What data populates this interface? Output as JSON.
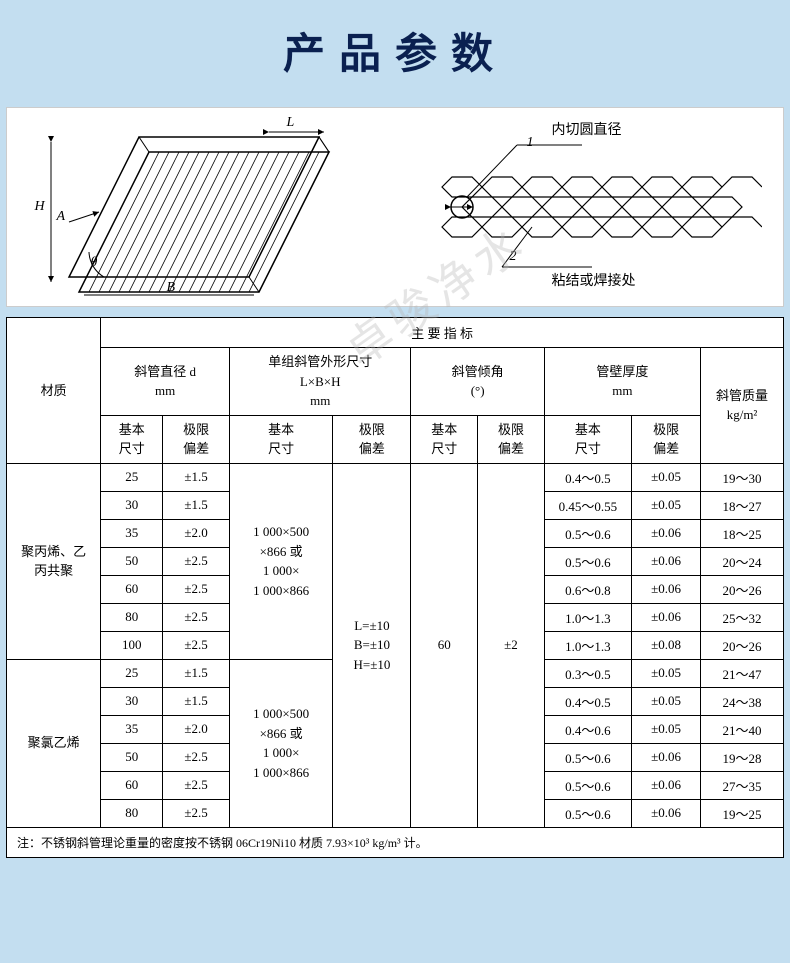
{
  "page": {
    "title": "产品参数",
    "watermark": "卓骏净水",
    "title_color": "#0a2050",
    "bg_color": "#c3def0",
    "panel_bg": "#ffffff",
    "border_color": "#000000"
  },
  "diagram": {
    "left_labels": {
      "H": "H",
      "L": "L",
      "A": "A",
      "B": "B",
      "theta": "θ"
    },
    "right_labels": {
      "top_arrow": "内切圆直径",
      "top_num": "1",
      "bottom_num": "2",
      "bottom_arrow": "粘结或焊接处"
    }
  },
  "table": {
    "top_header": "主 要 指 标",
    "col_groups": [
      {
        "label_1": "材质",
        "label_2": ""
      },
      {
        "label_1": "斜管直径 d",
        "label_2": "mm",
        "sub": [
          "基本\n尺寸",
          "极限\n偏差"
        ]
      },
      {
        "label_1": "单组斜管外形尺寸",
        "label_2": "L×B×H",
        "label_3": "mm",
        "sub": [
          "基本\n尺寸",
          "极限\n偏差"
        ]
      },
      {
        "label_1": "斜管倾角",
        "label_2": "(°)",
        "sub": [
          "基本\n尺寸",
          "极限\n偏差"
        ]
      },
      {
        "label_1": "管壁厚度",
        "label_2": "mm",
        "sub": [
          "基本\n尺寸",
          "极限\n偏差"
        ]
      },
      {
        "label_1": "斜管质量",
        "label_2": "kg/m²"
      }
    ],
    "shared": {
      "lbh_basic": "1 000×500\n×866 或\n1 000×\n1 000×866",
      "lbh_dev": "L=±10\nB=±10\nH=±10",
      "angle_basic": "60",
      "angle_dev": "±2"
    },
    "groups": [
      {
        "material": "聚丙烯、乙\n丙共聚",
        "rows": [
          {
            "d": "25",
            "d_dev": "±1.5",
            "t": "0.4～0.5",
            "t_dev": "±0.05",
            "mass": "19～30"
          },
          {
            "d": "30",
            "d_dev": "±1.5",
            "t": "0.45～0.55",
            "t_dev": "±0.05",
            "mass": "18～27"
          },
          {
            "d": "35",
            "d_dev": "±2.0",
            "t": "0.5～0.6",
            "t_dev": "±0.06",
            "mass": "18～25"
          },
          {
            "d": "50",
            "d_dev": "±2.5",
            "t": "0.5～0.6",
            "t_dev": "±0.06",
            "mass": "20～24"
          },
          {
            "d": "60",
            "d_dev": "±2.5",
            "t": "0.6～0.8",
            "t_dev": "±0.06",
            "mass": "20～26"
          },
          {
            "d": "80",
            "d_dev": "±2.5",
            "t": "1.0～1.3",
            "t_dev": "±0.06",
            "mass": "25～32"
          },
          {
            "d": "100",
            "d_dev": "±2.5",
            "t": "1.0～1.3",
            "t_dev": "±0.08",
            "mass": "20～26"
          }
        ]
      },
      {
        "material": "聚氯乙烯",
        "rows": [
          {
            "d": "25",
            "d_dev": "±1.5",
            "t": "0.3～0.5",
            "t_dev": "±0.05",
            "mass": "21～47"
          },
          {
            "d": "30",
            "d_dev": "±1.5",
            "t": "0.4～0.5",
            "t_dev": "±0.05",
            "mass": "24～38"
          },
          {
            "d": "35",
            "d_dev": "±2.0",
            "t": "0.4～0.6",
            "t_dev": "±0.05",
            "mass": "21～40"
          },
          {
            "d": "50",
            "d_dev": "±2.5",
            "t": "0.5～0.6",
            "t_dev": "±0.06",
            "mass": "19～28"
          },
          {
            "d": "60",
            "d_dev": "±2.5",
            "t": "0.5～0.6",
            "t_dev": "±0.06",
            "mass": "27～35"
          },
          {
            "d": "80",
            "d_dev": "±2.5",
            "t": "0.5～0.6",
            "t_dev": "±0.06",
            "mass": "19～25"
          }
        ]
      }
    ],
    "footnote": "注：不锈钢斜管理论重量的密度按不锈钢 06Cr19Ni10 材质 7.93×10³ kg/m³ 计。"
  }
}
